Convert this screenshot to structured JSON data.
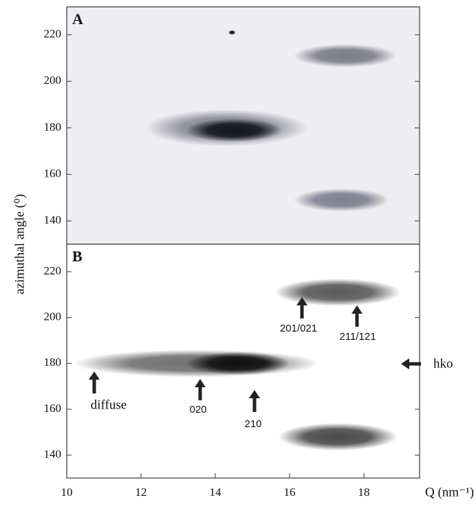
{
  "chart_data": [
    {
      "type": "heatmap",
      "panel_label": "A",
      "xlim": [
        10,
        19.5
      ],
      "ylim": [
        130,
        232
      ],
      "yticks": [
        140,
        160,
        180,
        200,
        220
      ],
      "background": "#eeeef2",
      "spots": [
        {
          "q": 14.3,
          "angle": 180,
          "q_width": 2.2,
          "angle_width": 8,
          "color": "#8a8a96"
        },
        {
          "q": 14.5,
          "angle": 179,
          "q_width": 1.3,
          "angle_width": 5,
          "color": "#15151c"
        },
        {
          "q": 17.5,
          "angle": 211,
          "q_width": 1.4,
          "angle_width": 5,
          "color": "#7c7c8a"
        },
        {
          "q": 17.4,
          "angle": 149,
          "q_width": 1.3,
          "angle_width": 5,
          "color": "#808090"
        },
        {
          "q": 14.45,
          "angle": 221,
          "q_width": 0.1,
          "angle_width": 1,
          "color": "#111111"
        }
      ]
    },
    {
      "type": "heatmap",
      "panel_label": "B",
      "xlim": [
        10,
        19.5
      ],
      "ylim": [
        130,
        232
      ],
      "yticks": [
        140,
        160,
        180,
        200,
        220
      ],
      "xticks": [
        10,
        12,
        14,
        16,
        18
      ],
      "background": "#ffffff",
      "xlabel": "Q (nm⁻¹)",
      "ylabel": "azimuthal angle (⁰)",
      "spots": [
        {
          "q": 13.5,
          "angle": 180,
          "q_width": 3.3,
          "angle_width": 6,
          "color": "#707070"
        },
        {
          "q": 14.6,
          "angle": 180,
          "q_width": 1.4,
          "angle_width": 5,
          "color": "#111111"
        },
        {
          "q": 17.3,
          "angle": 211,
          "q_width": 1.7,
          "angle_width": 6,
          "color": "#5a5a5a"
        },
        {
          "q": 17.3,
          "angle": 148,
          "q_width": 1.6,
          "angle_width": 6,
          "color": "#4a4a4a"
        }
      ],
      "annotations": [
        "diffuse",
        "020",
        "210",
        "201/021",
        "211/121",
        "hko"
      ]
    }
  ]
}
